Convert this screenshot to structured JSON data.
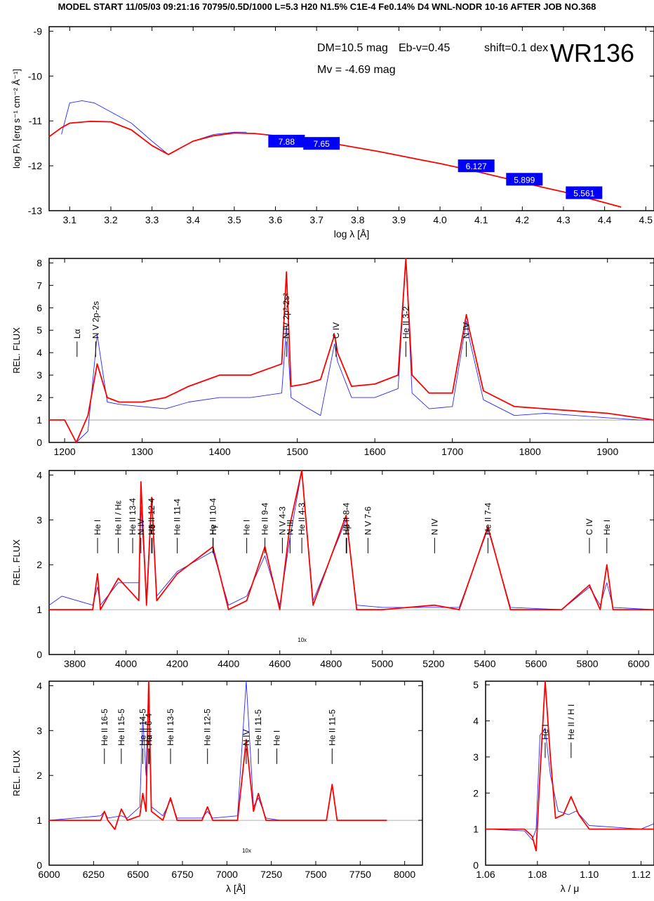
{
  "header": "MODEL START   11/05/03  09:21:16   70795/0.5D/1000 L=5.3 H20 N1.5% C1E-4 Fe0.14% D4 WNL-NODR 10-16    AFTER JOB NO.368",
  "colors": {
    "model": "#ff0000",
    "observed": "#2828ff",
    "box": "#0000ff",
    "axis": "#000000",
    "guide": "#9a9a9a"
  },
  "chart_data": [
    {
      "type": "line",
      "panel": "sed",
      "title": "WR136",
      "xlabel": "log λ [Å]",
      "ylabel": "log Fλ [erg s⁻¹ cm⁻² Å⁻¹]",
      "xlim": [
        3.05,
        4.52
      ],
      "ylim": [
        -13,
        -8.9
      ],
      "xticks": [
        3.1,
        3.2,
        3.3,
        3.4,
        3.5,
        3.6,
        3.7,
        3.8,
        3.9,
        4.0,
        4.1,
        4.2,
        4.3,
        4.4,
        4.5
      ],
      "xtick_labels": [
        "3.1",
        "3.2",
        "3.3",
        "3.4",
        "3.5",
        "3.6",
        "3.7",
        "3.8",
        "3.9",
        "4.0",
        "4.1",
        "4.2",
        "4.3",
        "4.4",
        "4.5"
      ],
      "yticks": [
        -13,
        -12,
        -11,
        -10,
        -9
      ],
      "ytick_labels": [
        "-13",
        "-12",
        "-11",
        "-10",
        "-9"
      ],
      "params": {
        "dm": "DM=10.5 mag",
        "ebv": "Eb-v=0.45",
        "shift": "shift=0.1 dex",
        "mv": "Mv = -4.69 mag"
      },
      "series": [
        {
          "role": "model",
          "x": [
            3.05,
            3.08,
            3.1,
            3.15,
            3.2,
            3.25,
            3.3,
            3.34,
            3.37,
            3.4,
            3.45,
            3.5,
            3.55,
            3.6,
            3.65,
            3.7,
            3.75,
            3.8,
            3.85,
            3.9,
            3.95,
            4.0,
            4.05,
            4.1,
            4.15,
            4.2,
            4.25,
            4.3,
            4.35,
            4.4,
            4.44
          ],
          "y": [
            -11.35,
            -11.15,
            -11.05,
            -11.01,
            -11.02,
            -11.2,
            -11.55,
            -11.75,
            -11.6,
            -11.45,
            -11.33,
            -11.27,
            -11.28,
            -11.33,
            -11.38,
            -11.45,
            -11.52,
            -11.6,
            -11.68,
            -11.77,
            -11.86,
            -11.95,
            -12.05,
            -12.15,
            -12.26,
            -12.37,
            -12.48,
            -12.58,
            -12.7,
            -12.82,
            -12.92
          ]
        },
        {
          "role": "observed",
          "x": [
            3.08,
            3.1,
            3.13,
            3.16,
            3.2,
            3.25,
            3.3,
            3.34,
            3.37,
            3.4,
            3.45,
            3.5,
            3.53
          ],
          "y": [
            -11.3,
            -10.6,
            -10.55,
            -10.6,
            -10.8,
            -11.05,
            -11.45,
            -11.75,
            -11.6,
            -11.45,
            -11.3,
            -11.25,
            -11.25
          ]
        }
      ],
      "boxes": [
        {
          "label": "7.88",
          "x": 3.627,
          "y": -11.45
        },
        {
          "label": "7.65",
          "x": 3.712,
          "y": -11.5
        },
        {
          "label": "6.127",
          "x": 4.088,
          "y": -12.0
        },
        {
          "label": "5.899",
          "x": 4.205,
          "y": -12.3
        },
        {
          "label": "5.561",
          "x": 4.35,
          "y": -12.6
        }
      ]
    },
    {
      "type": "line",
      "panel": "uv",
      "ylabel": "REL. FLUX",
      "xlim": [
        1180,
        1960
      ],
      "ylim": [
        0,
        8.2
      ],
      "xticks": [
        1200,
        1300,
        1400,
        1500,
        1600,
        1700,
        1800,
        1900
      ],
      "xtick_labels": [
        "1200",
        "1300",
        "1400",
        "1500",
        "1600",
        "1700",
        "1800",
        "1900"
      ],
      "yticks": [
        0,
        1,
        2,
        3,
        4,
        5,
        6,
        7,
        8
      ],
      "ytick_labels": [
        "0",
        "1",
        "2",
        "3",
        "4",
        "5",
        "6",
        "7",
        "8"
      ],
      "lines": [
        {
          "label": "Lα",
          "x": 1216,
          "y": 4.5
        },
        {
          "label": "N V 2p-2s",
          "x": 1240,
          "y": 4.5
        },
        {
          "label": "N IV 2p³-2s²",
          "x": 1486,
          "y": 4.5
        },
        {
          "label": "C IV",
          "x": 1550,
          "y": 4.5
        },
        {
          "label": "He II 3-2",
          "x": 1640,
          "y": 4.5
        },
        {
          "label": "N IV",
          "x": 1718,
          "y": 4.5
        }
      ],
      "series": [
        {
          "role": "model",
          "x": [
            1180,
            1200,
            1215,
            1230,
            1242,
            1255,
            1270,
            1300,
            1330,
            1360,
            1400,
            1440,
            1480,
            1486,
            1492,
            1510,
            1530,
            1548,
            1552,
            1570,
            1600,
            1630,
            1640,
            1648,
            1670,
            1700,
            1718,
            1722,
            1740,
            1780,
            1820,
            1860,
            1900,
            1940,
            1960
          ],
          "y": [
            1.0,
            1.0,
            0.0,
            1.2,
            3.5,
            2.0,
            1.8,
            1.8,
            2.0,
            2.5,
            3.0,
            3.0,
            3.5,
            7.6,
            2.5,
            2.6,
            2.8,
            4.8,
            4.0,
            2.5,
            2.6,
            3.0,
            8.2,
            3.0,
            2.2,
            2.2,
            5.7,
            5.0,
            2.3,
            1.6,
            1.5,
            1.4,
            1.3,
            1.1,
            1.0
          ]
        },
        {
          "role": "observed",
          "x": [
            1180,
            1200,
            1215,
            1230,
            1242,
            1255,
            1270,
            1300,
            1330,
            1360,
            1400,
            1440,
            1480,
            1486,
            1492,
            1510,
            1530,
            1548,
            1552,
            1570,
            1600,
            1630,
            1640,
            1648,
            1670,
            1700,
            1718,
            1722,
            1740,
            1780,
            1820,
            1860,
            1900,
            1940,
            1960
          ],
          "y": [
            1.0,
            1.0,
            0.0,
            0.5,
            4.8,
            1.8,
            1.7,
            1.6,
            1.5,
            1.8,
            2.0,
            2.0,
            2.2,
            5.2,
            2.0,
            1.6,
            1.2,
            4.4,
            3.6,
            2.0,
            2.0,
            2.4,
            8.2,
            2.2,
            1.5,
            1.6,
            5.4,
            4.6,
            1.9,
            1.2,
            1.3,
            1.2,
            1.1,
            1.0,
            1.0
          ]
        }
      ]
    },
    {
      "type": "line",
      "panel": "optical",
      "ylabel": "REL. FLUX",
      "xlim": [
        3700,
        6060
      ],
      "ylim": [
        0,
        4.1
      ],
      "xticks": [
        3800,
        4000,
        4200,
        4400,
        4600,
        4800,
        5000,
        5200,
        5400,
        5600,
        5800,
        6000
      ],
      "xtick_labels": [
        "3800",
        "4000",
        "4200",
        "4400",
        "4600",
        "4800",
        "5000",
        "5200",
        "5400",
        "5600",
        "5800",
        "6000"
      ],
      "yticks": [
        0,
        1,
        2,
        3,
        4
      ],
      "ytick_labels": [
        "0",
        "1",
        "2",
        "3",
        "4"
      ],
      "inset_label": "10x",
      "lines": [
        {
          "label": "He I",
          "x": 3889,
          "y": 2.6
        },
        {
          "label": "He II / Hε",
          "x": 3970,
          "y": 2.6
        },
        {
          "label": "He II 13-4",
          "x": 4026,
          "y": 2.6
        },
        {
          "label": "N IV",
          "x": 4058,
          "y": 2.6
        },
        {
          "label": "He II 12-4",
          "x": 4100,
          "y": 2.6
        },
        {
          "label": "Hδ",
          "x": 4102,
          "y": 2.6
        },
        {
          "label": "He II 11-4",
          "x": 4200,
          "y": 2.6
        },
        {
          "label": "He II 10-4",
          "x": 4339,
          "y": 2.6
        },
        {
          "label": "Hγ",
          "x": 4340,
          "y": 2.6
        },
        {
          "label": "He I",
          "x": 4471,
          "y": 2.6
        },
        {
          "label": "He II 9-4",
          "x": 4542,
          "y": 2.6
        },
        {
          "label": "N V 4-3",
          "x": 4610,
          "y": 2.6
        },
        {
          "label": "N III",
          "x": 4640,
          "y": 2.6
        },
        {
          "label": "He II 4-3",
          "x": 4686,
          "y": 2.6
        },
        {
          "label": "He II 8-4",
          "x": 4859,
          "y": 2.6
        },
        {
          "label": "Hβ",
          "x": 4861,
          "y": 2.6
        },
        {
          "label": "N V 7-6",
          "x": 4944,
          "y": 2.6
        },
        {
          "label": "N IV",
          "x": 5204,
          "y": 2.6
        },
        {
          "label": "He II 7-4",
          "x": 5412,
          "y": 2.6
        },
        {
          "label": "C IV",
          "x": 5808,
          "y": 2.6
        },
        {
          "label": "He I",
          "x": 5876,
          "y": 2.6
        }
      ],
      "series": [
        {
          "role": "model",
          "x": [
            3700,
            3870,
            3889,
            3900,
            3970,
            4050,
            4058,
            4080,
            4100,
            4120,
            4200,
            4339,
            4400,
            4471,
            4542,
            4600,
            4640,
            4686,
            4730,
            4859,
            4900,
            5000,
            5204,
            5300,
            5412,
            5500,
            5700,
            5808,
            5850,
            5876,
            5900,
            6060
          ],
          "y": [
            1.0,
            1.0,
            1.8,
            1.0,
            1.7,
            1.2,
            3.85,
            1.1,
            3.5,
            1.2,
            1.8,
            2.4,
            1.0,
            1.2,
            2.4,
            1.0,
            2.9,
            4.1,
            1.1,
            3.1,
            1.0,
            1.0,
            1.1,
            1.0,
            2.85,
            1.0,
            1.0,
            1.55,
            1.0,
            2.0,
            1.0,
            1.0
          ]
        },
        {
          "role": "observed",
          "x": [
            3700,
            3750,
            3870,
            3889,
            3900,
            3970,
            4050,
            4058,
            4080,
            4100,
            4120,
            4200,
            4339,
            4400,
            4471,
            4542,
            4600,
            4640,
            4686,
            4730,
            4859,
            4900,
            5000,
            5204,
            5300,
            5412,
            5500,
            5700,
            5808,
            5850,
            5876,
            5900,
            6060
          ],
          "y": [
            1.1,
            1.3,
            1.1,
            1.5,
            1.1,
            1.6,
            1.6,
            3.3,
            1.3,
            3.5,
            1.3,
            1.85,
            2.3,
            1.1,
            1.3,
            2.2,
            1.1,
            2.6,
            4.1,
            1.2,
            3.0,
            1.1,
            1.05,
            1.05,
            1.05,
            2.8,
            1.05,
            1.0,
            1.5,
            1.1,
            1.6,
            1.05,
            1.0
          ]
        }
      ]
    },
    {
      "type": "line",
      "panel": "red",
      "ylabel": "REL. FLUX",
      "xlabel": "λ [Å]",
      "xlim": [
        6000,
        8100
      ],
      "ylim": [
        0,
        4.1
      ],
      "xticks": [
        6000,
        6250,
        6500,
        6750,
        7000,
        7250,
        7500,
        7750,
        8000
      ],
      "xtick_labels": [
        "6000",
        "6250",
        "6500",
        "6750",
        "7000",
        "7250",
        "7500",
        "7750",
        "8000"
      ],
      "yticks": [
        0,
        1,
        2,
        3,
        4
      ],
      "ytick_labels": [
        "0",
        "1",
        "2",
        "3",
        "4"
      ],
      "inset_label": "10x",
      "lines": [
        {
          "label": "He II 16-5",
          "x": 6311,
          "y": 2.6
        },
        {
          "label": "He II 15-5",
          "x": 6406,
          "y": 2.6
        },
        {
          "label": "He II 14-5",
          "x": 6527,
          "y": 2.6
        },
        {
          "label": "He II 6-4",
          "x": 6560,
          "y": 2.6
        },
        {
          "label": "Hα",
          "x": 6563,
          "y": 2.6
        },
        {
          "label": "He II 13-5",
          "x": 6683,
          "y": 2.6
        },
        {
          "label": "He II 12-5",
          "x": 6891,
          "y": 2.6
        },
        {
          "label": "N IV",
          "x": 7109,
          "y": 2.6
        },
        {
          "label": "He II 11-5",
          "x": 7177,
          "y": 2.6
        },
        {
          "label": "He I",
          "x": 7281,
          "y": 2.6
        },
        {
          "label": "He II 11-5",
          "x": 7592,
          "y": 2.6
        }
      ],
      "series": [
        {
          "role": "model",
          "x": [
            6000,
            6290,
            6311,
            6330,
            6370,
            6406,
            6440,
            6510,
            6527,
            6545,
            6560,
            6575,
            6640,
            6683,
            6720,
            6860,
            6891,
            6920,
            7060,
            7109,
            7150,
            7177,
            7220,
            7560,
            7592,
            7620,
            7900
          ],
          "y": [
            1.0,
            1.0,
            1.2,
            1.0,
            0.8,
            1.25,
            1.0,
            1.1,
            1.6,
            1.2,
            4.1,
            1.2,
            1.0,
            1.5,
            1.0,
            1.0,
            1.3,
            1.0,
            1.0,
            2.8,
            1.2,
            1.6,
            1.0,
            1.0,
            1.8,
            1.0,
            1.0
          ]
        },
        {
          "role": "observed",
          "x": [
            6000,
            6290,
            6311,
            6330,
            6406,
            6440,
            6510,
            6527,
            6545,
            6560,
            6575,
            6640,
            6683,
            6720,
            6860,
            6891,
            6920,
            7060,
            7109,
            7150,
            7177,
            7220,
            7300
          ],
          "y": [
            1.0,
            1.1,
            1.2,
            1.05,
            1.1,
            1.05,
            1.3,
            3.3,
            2.0,
            4.1,
            1.3,
            1.1,
            1.45,
            1.05,
            1.05,
            1.2,
            1.05,
            1.1,
            4.1,
            1.3,
            1.5,
            1.05,
            1.0
          ]
        }
      ]
    },
    {
      "type": "line",
      "panel": "ir",
      "xlabel": "λ / μ",
      "xlim": [
        1.06,
        1.125
      ],
      "ylim": [
        0,
        5.1
      ],
      "xticks": [
        1.06,
        1.08,
        1.1,
        1.12
      ],
      "xtick_labels": [
        "1.06",
        "1.08",
        "1.10",
        "1.12"
      ],
      "yticks": [
        0,
        1,
        2,
        3,
        4,
        5
      ],
      "ytick_labels": [
        "0",
        "1",
        "2",
        "3",
        "4",
        "5"
      ],
      "lines": [
        {
          "label": "He I",
          "x": 1.083,
          "y": 3.4
        },
        {
          "label": "He II / H I",
          "x": 1.093,
          "y": 3.4
        }
      ],
      "series": [
        {
          "role": "model",
          "x": [
            1.06,
            1.075,
            1.078,
            1.0795,
            1.081,
            1.083,
            1.085,
            1.087,
            1.09,
            1.093,
            1.096,
            1.1,
            1.125
          ],
          "y": [
            1.0,
            1.0,
            0.8,
            0.4,
            2.5,
            5.1,
            3.0,
            1.3,
            1.4,
            1.9,
            1.4,
            1.0,
            1.0
          ]
        },
        {
          "role": "observed",
          "x": [
            1.06,
            1.075,
            1.078,
            1.0795,
            1.081,
            1.083,
            1.085,
            1.088,
            1.092,
            1.095,
            1.1,
            1.12,
            1.125
          ],
          "y": [
            1.0,
            0.95,
            0.7,
            1.0,
            3.6,
            3.8,
            2.5,
            1.5,
            1.4,
            1.5,
            1.1,
            1.0,
            1.15
          ]
        }
      ]
    }
  ]
}
